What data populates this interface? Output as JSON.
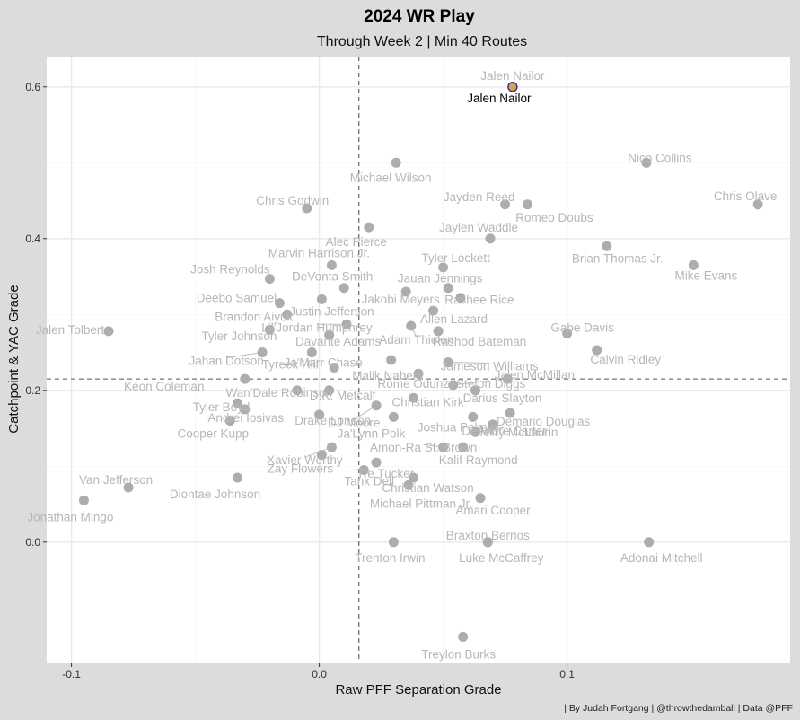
{
  "chart_data": {
    "type": "scatter",
    "title": "2024 WR Play",
    "subtitle": "Through Week 2 | Min 40 Routes",
    "xlabel": "Raw PFF Separation Grade",
    "ylabel": "Catchpoint & YAC Grade",
    "caption": "| By Judah Fortgang | @throwthedamball | Data @PFF",
    "xlim": [
      -0.11,
      0.19
    ],
    "ylim": [
      -0.16,
      0.64
    ],
    "x_ticks": [
      -0.1,
      0.0,
      0.1
    ],
    "x_tick_labels": [
      "-0.1",
      "0.0",
      "0.1"
    ],
    "y_ticks": [
      0.0,
      0.2,
      0.4,
      0.6
    ],
    "y_tick_labels": [
      "0.0",
      "0.2",
      "0.4",
      "0.6"
    ],
    "grid": true,
    "reference_lines": {
      "x": 0.016,
      "y": 0.215
    },
    "highlight": {
      "name": "Jalen Nailor",
      "x": 0.078,
      "y": 0.6
    },
    "points": [
      {
        "name": "Jalen Nailor",
        "x": 0.078,
        "y": 0.6,
        "highlight": true
      },
      {
        "name": "Nico Collins",
        "x": 0.132,
        "y": 0.5
      },
      {
        "name": "Michael Wilson",
        "x": 0.031,
        "y": 0.5
      },
      {
        "name": "Chris Godwin",
        "x": -0.005,
        "y": 0.44
      },
      {
        "name": "Jayden Reed",
        "x": 0.075,
        "y": 0.445
      },
      {
        "name": "Romeo Doubs",
        "x": 0.084,
        "y": 0.445
      },
      {
        "name": "Chris Olave",
        "x": 0.177,
        "y": 0.445
      },
      {
        "name": "Alec Pierce",
        "x": 0.02,
        "y": 0.415
      },
      {
        "name": "Jaylen Waddle",
        "x": 0.069,
        "y": 0.4
      },
      {
        "name": "Brian Thomas Jr.",
        "x": 0.116,
        "y": 0.39
      },
      {
        "name": "Tyler Lockett",
        "x": 0.05,
        "y": 0.362
      },
      {
        "name": "Marvin Harrison Jr.",
        "x": 0.005,
        "y": 0.365
      },
      {
        "name": "Mike Evans",
        "x": 0.151,
        "y": 0.365
      },
      {
        "name": "Josh Reynolds",
        "x": -0.02,
        "y": 0.347
      },
      {
        "name": "DeVonta Smith",
        "x": 0.01,
        "y": 0.335
      },
      {
        "name": "Jauan Jennings",
        "x": 0.052,
        "y": 0.335
      },
      {
        "name": "Deebo Samuel",
        "x": -0.016,
        "y": 0.315
      },
      {
        "name": "Jakobi Meyers",
        "x": 0.035,
        "y": 0.33
      },
      {
        "name": "Rashee Rice",
        "x": 0.057,
        "y": 0.322
      },
      {
        "name": "Justin Jefferson",
        "x": 0.001,
        "y": 0.32
      },
      {
        "name": "Allen Lazard",
        "x": 0.046,
        "y": 0.305
      },
      {
        "name": "Jalen Tolbert",
        "x": -0.085,
        "y": 0.278
      },
      {
        "name": "Brandon Aiyuk",
        "x": -0.013,
        "y": 0.3
      },
      {
        "name": "Lil'Jordan Humphrey",
        "x": 0.011,
        "y": 0.287
      },
      {
        "name": "Adam Thielen",
        "x": 0.037,
        "y": 0.285
      },
      {
        "name": "Rashod Bateman",
        "x": 0.048,
        "y": 0.278
      },
      {
        "name": "Gabe Davis",
        "x": 0.1,
        "y": 0.275
      },
      {
        "name": "Tyler Johnson",
        "x": -0.02,
        "y": 0.28
      },
      {
        "name": "Davante Adams",
        "x": 0.004,
        "y": 0.273
      },
      {
        "name": "Calvin Ridley",
        "x": 0.112,
        "y": 0.253
      },
      {
        "name": "Jahan Dotson",
        "x": -0.023,
        "y": 0.25
      },
      {
        "name": "Malik Nabers",
        "x": 0.029,
        "y": 0.24
      },
      {
        "name": "Jameson Williams",
        "x": 0.052,
        "y": 0.237
      },
      {
        "name": "Tyreek Hill",
        "x": -0.003,
        "y": 0.25
      },
      {
        "name": "Stefon Diggs",
        "x": 0.054,
        "y": 0.207
      },
      {
        "name": "Jalen McMillan",
        "x": 0.076,
        "y": 0.215
      },
      {
        "name": "Ja'Marr Chase",
        "x": 0.006,
        "y": 0.23
      },
      {
        "name": "Keon Coleman",
        "x": -0.03,
        "y": 0.215
      },
      {
        "name": "Rome Odunze",
        "x": 0.04,
        "y": 0.222
      },
      {
        "name": "Darius Slayton",
        "x": 0.063,
        "y": 0.2
      },
      {
        "name": "Wan'Dale Robinson",
        "x": -0.009,
        "y": 0.2
      },
      {
        "name": "D.K. Metcalf",
        "x": 0.004,
        "y": 0.2
      },
      {
        "name": "Christian Kirk",
        "x": 0.038,
        "y": 0.19
      },
      {
        "name": "Demario Douglas",
        "x": 0.077,
        "y": 0.17
      },
      {
        "name": "Tyler Boyd",
        "x": -0.033,
        "y": 0.183
      },
      {
        "name": "Andrei Iosivas",
        "x": -0.03,
        "y": 0.175
      },
      {
        "name": "Drake London",
        "x": 0.0,
        "y": 0.168
      },
      {
        "name": "Joshua Palmer",
        "x": 0.062,
        "y": 0.165
      },
      {
        "name": "Terry McLaurin",
        "x": 0.07,
        "y": 0.155
      },
      {
        "name": "Cooper Kupp",
        "x": -0.036,
        "y": 0.16
      },
      {
        "name": "DJ Moore",
        "x": 0.023,
        "y": 0.18
      },
      {
        "name": "Ja'Lynn Polk",
        "x": 0.03,
        "y": 0.165
      },
      {
        "name": "DeAndre Carter",
        "x": 0.063,
        "y": 0.145
      },
      {
        "name": "Xavier Worthy",
        "x": 0.005,
        "y": 0.125
      },
      {
        "name": "Amon-Ra St. Brown",
        "x": 0.05,
        "y": 0.125
      },
      {
        "name": "Kalif Raymond",
        "x": 0.058,
        "y": 0.125
      },
      {
        "name": "Zay Flowers",
        "x": 0.001,
        "y": 0.115
      },
      {
        "name": "Tre Tucker",
        "x": 0.023,
        "y": 0.105
      },
      {
        "name": "Tank Dell",
        "x": 0.018,
        "y": 0.095
      },
      {
        "name": "Christian Watson",
        "x": 0.038,
        "y": 0.085
      },
      {
        "name": "Van Jefferson",
        "x": -0.077,
        "y": 0.072
      },
      {
        "name": "Diontae Johnson",
        "x": -0.033,
        "y": 0.085
      },
      {
        "name": "Michael Pittman Jr.",
        "x": 0.036,
        "y": 0.075
      },
      {
        "name": "Jonathan Mingo",
        "x": -0.095,
        "y": 0.055
      },
      {
        "name": "Amari Cooper",
        "x": 0.065,
        "y": 0.058
      },
      {
        "name": "Braxton Berrios",
        "x": 0.068,
        "y": 0.0
      },
      {
        "name": "Trenton Irwin",
        "x": 0.03,
        "y": 0.0
      },
      {
        "name": "Luke McCaffrey",
        "x": 0.068,
        "y": 0.0
      },
      {
        "name": "Adonai Mitchell",
        "x": 0.133,
        "y": 0.0
      },
      {
        "name": "Treylon Burks",
        "x": 0.058,
        "y": -0.125
      }
    ]
  }
}
